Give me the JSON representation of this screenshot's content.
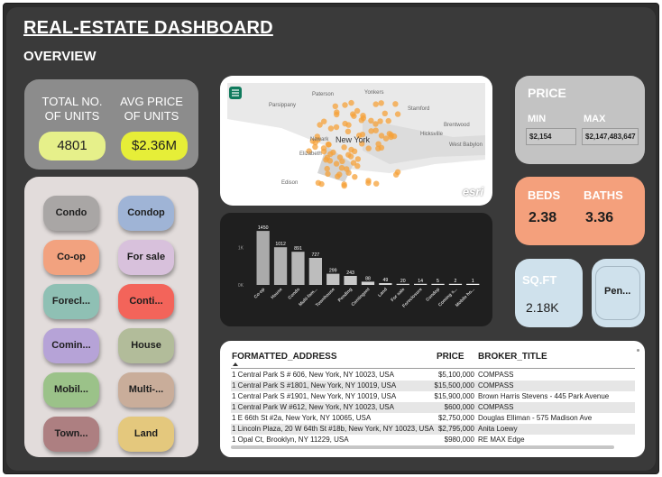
{
  "header": {
    "title": "REAL-ESTATE DASHBOARD",
    "subtitle": "OVERVIEW"
  },
  "units": {
    "total_label": "TOTAL NO. OF UNITS",
    "total_value": "4801",
    "avg_label": "AVG PRICE OF UNITS",
    "avg_value": "$2.36M"
  },
  "filters": [
    {
      "label": "Condo",
      "color": "#a9a6a5"
    },
    {
      "label": "Condop",
      "color": "#9fb4d6"
    },
    {
      "label": "Co-op",
      "color": "#f2a27f"
    },
    {
      "label": "For sale",
      "color": "#d8c1dc"
    },
    {
      "label": "Forecl...",
      "color": "#8fc0b4"
    },
    {
      "label": "Conti...",
      "color": "#f3645a"
    },
    {
      "label": "Comin...",
      "color": "#b6a3d7"
    },
    {
      "label": "House",
      "color": "#b2bc9a"
    },
    {
      "label": "Mobil...",
      "color": "#9bc289"
    },
    {
      "label": "Multi-...",
      "color": "#c9ad9a"
    },
    {
      "label": "Town...",
      "color": "#ad7f81"
    },
    {
      "label": "Land",
      "color": "#e4c87d"
    }
  ],
  "map": {
    "labels": [
      "Paterson",
      "Yonkers",
      "Parsippany",
      "Stamford",
      "Newark",
      "New York",
      "Brentwood",
      "West Babylon",
      "Hicksville",
      "Elizabeth",
      "Edison"
    ],
    "attribution": "esri",
    "menu_icon": "menu-icon"
  },
  "chart_data": {
    "type": "bar",
    "categories": [
      "Co-op",
      "House",
      "Condo",
      "Multi-fam...",
      "Townhouse",
      "Pending",
      "Contingent",
      "Land",
      "For sale",
      "Foreclosure",
      "Condop",
      "Coming s...",
      "Mobile ho..."
    ],
    "values": [
      1450,
      1012,
      891,
      727,
      299,
      243,
      88,
      49,
      20,
      14,
      5,
      2,
      1
    ],
    "y_ticks": [
      "1K",
      "0K"
    ],
    "ylim": [
      0,
      1500
    ],
    "title": "",
    "xlabel": "",
    "ylabel": ""
  },
  "price": {
    "title": "PRICE",
    "min_label": "MIN",
    "max_label": "MAX",
    "min_value": "$2,154",
    "max_value": "$2,147,483,647"
  },
  "beds": {
    "label": "BEDS",
    "value": "2.38"
  },
  "baths": {
    "label": "BATHS",
    "value": "3.36"
  },
  "sqft": {
    "label": "SQ.FT",
    "value": "2.18K"
  },
  "pen": {
    "label": "Pen..."
  },
  "table": {
    "columns": [
      "FORMATTED_ADDRESS",
      "PRICE",
      "BROKER_TITLE"
    ],
    "rows": [
      [
        "1 Central Park S # 606, New York, NY 10023, USA",
        "$5,100,000",
        "COMPASS"
      ],
      [
        "1 Central Park S #1801, New York, NY 10019, USA",
        "$15,500,000",
        "COMPASS"
      ],
      [
        "1 Central Park S #1901, New York, NY 10019, USA",
        "$15,900,000",
        "Brown Harris Stevens - 445 Park Avenue"
      ],
      [
        "1 Central Park W #612, New York, NY 10023, USA",
        "$600,000",
        "COMPASS"
      ],
      [
        "1 E 66th St #2a, New York, NY 10065, USA",
        "$2,750,000",
        "Douglas Elliman - 575 Madison Ave"
      ],
      [
        "1 Lincoln Plaza, 20 W 64th St #18b, New York, NY 10023, USA",
        "$2,795,000",
        "Anita Loewy"
      ],
      [
        "1 Opal Ct, Brooklyn, NY 11229, USA",
        "$980,000",
        "RE MAX Edge"
      ]
    ]
  }
}
